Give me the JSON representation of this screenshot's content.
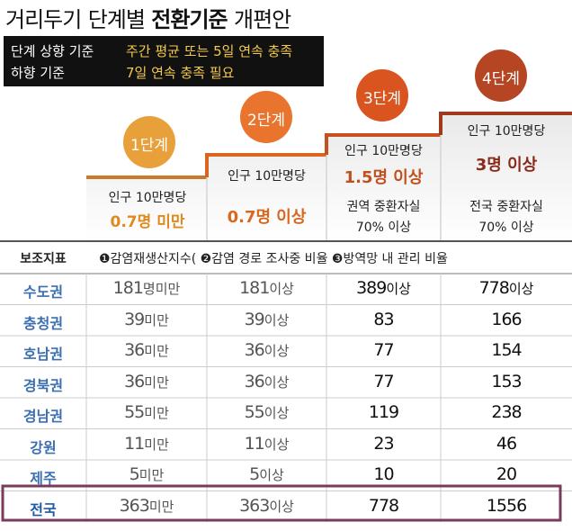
{
  "title": {
    "part1": "거리두기",
    "part2": "단계별",
    "part3": "전환기준",
    "part4": "개편안"
  },
  "criteria": {
    "up_label": "단계 상향 기준",
    "up_value": "주간 평균 또는 5일 연속 충족",
    "down_label": "하향 기준",
    "down_value": "7일 연속 충족 필요"
  },
  "levels": [
    {
      "badge": "1단계",
      "line1": "인구 10만명당",
      "line2": "0.7명 미만",
      "line3": "",
      "line4": "",
      "color": "#e8a13a",
      "emph": "#e08a1e"
    },
    {
      "badge": "2단계",
      "line1": "인구 10만명당",
      "line2": "0.7명 이상",
      "line3": "",
      "line4": "",
      "color": "#e8742e",
      "emph": "#d9681f"
    },
    {
      "badge": "3단계",
      "line1": "인구 10만명당",
      "line2": "1.5명 이상",
      "line3": "권역 중환자실",
      "line4": "70% 이상",
      "color": "#d9541f",
      "emph": "#c0501d"
    },
    {
      "badge": "4단계",
      "line1": "인구 10만명당",
      "line2": "3명 이상",
      "line3": "전국 중환자실",
      "line4": "70% 이상",
      "color": "#b54523",
      "emph": "#8a2a1a"
    }
  ],
  "table": {
    "aux_label": "보조지표",
    "aux_text": "❶감염재생산지수( ❷감염 경로 조사중 비율 ❸방역망 내 관리 비율",
    "rows": [
      {
        "region": "수도권",
        "v1": "181",
        "u1": "명미만",
        "v2": "181",
        "u2": "이상",
        "v3": "389",
        "u3": "이상",
        "v4": "778",
        "u4": "이상"
      },
      {
        "region": "충청권",
        "v1": "39",
        "u1": "미만",
        "v2": "39",
        "u2": "이상",
        "v3": "83",
        "u3": "",
        "v4": "166",
        "u4": ""
      },
      {
        "region": "호남권",
        "v1": "36",
        "u1": "미만",
        "v2": "36",
        "u2": "이상",
        "v3": "77",
        "u3": "",
        "v4": "154",
        "u4": ""
      },
      {
        "region": "경북권",
        "v1": "36",
        "u1": "미만",
        "v2": "36",
        "u2": "이상",
        "v3": "77",
        "u3": "",
        "v4": "153",
        "u4": ""
      },
      {
        "region": "경남권",
        "v1": "55",
        "u1": "미만",
        "v2": "55",
        "u2": "이상",
        "v3": "119",
        "u3": "",
        "v4": "238",
        "u4": ""
      },
      {
        "region": "강원",
        "v1": "11",
        "u1": "미만",
        "v2": "11",
        "u2": "이상",
        "v3": "23",
        "u3": "",
        "v4": "46",
        "u4": ""
      },
      {
        "region": "제주",
        "v1": "5",
        "u1": "미만",
        "v2": "5",
        "u2": "이상",
        "v3": "10",
        "u3": "",
        "v4": "20",
        "u4": ""
      },
      {
        "region": "전국",
        "v1": "363",
        "u1": "미만",
        "v2": "363",
        "u2": "이상",
        "v3": "778",
        "u3": "",
        "v4": "1556",
        "u4": ""
      }
    ]
  },
  "chart_data": {
    "type": "table",
    "title": "거리두기 단계별 전환기준 개편안",
    "columns": [
      "1단계",
      "2단계",
      "3단계",
      "4단계"
    ],
    "thresholds_per_100k": [
      "0.7명 미만",
      "0.7명 이상",
      "1.5명 이상",
      "3명 이상"
    ],
    "regions": [
      "수도권",
      "충청권",
      "호남권",
      "경북권",
      "경남권",
      "강원",
      "제주",
      "전국"
    ],
    "values": [
      [
        181,
        181,
        389,
        778
      ],
      [
        39,
        39,
        83,
        166
      ],
      [
        36,
        36,
        77,
        154
      ],
      [
        36,
        36,
        77,
        153
      ],
      [
        55,
        55,
        119,
        238
      ],
      [
        11,
        11,
        23,
        46
      ],
      [
        5,
        5,
        10,
        20
      ],
      [
        363,
        363,
        778,
        1556
      ]
    ]
  }
}
